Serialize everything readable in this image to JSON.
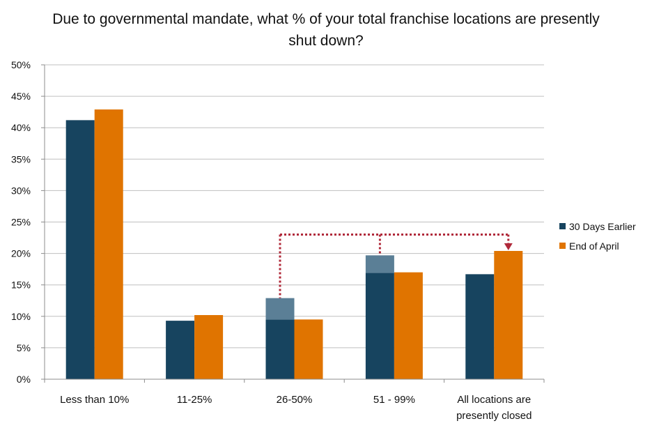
{
  "chart_data": {
    "type": "bar",
    "title": "Due to governmental mandate, what % of your total franchise locations are presently shut down?",
    "categories": [
      "Less than 10%",
      "11-25%",
      "26-50%",
      "51 - 99%",
      "All locations are presently closed"
    ],
    "series": [
      {
        "name": "30 Days Earlier",
        "values": [
          41.2,
          9.3,
          9.5,
          16.9,
          16.7
        ],
        "color": "#17445f"
      },
      {
        "name": "End of April",
        "values": [
          42.9,
          10.2,
          9.5,
          17.0,
          20.4
        ],
        "color": "#e07400"
      }
    ],
    "overlay": {
      "description_color": "#5b7f96",
      "segments": [
        {
          "category": "26-50%",
          "series": "30 Days Earlier",
          "from": 9.5,
          "to": 12.9
        },
        {
          "category": "51 - 99%",
          "series": "30 Days Earlier",
          "from": 16.9,
          "to": 19.7
        }
      ],
      "connector": {
        "color": "#b0293a",
        "style": "dotted",
        "level": 23,
        "to_category": "All locations are presently closed",
        "to_series": "End of April"
      }
    },
    "yticks": [
      "0%",
      "5%",
      "10%",
      "15%",
      "20%",
      "25%",
      "30%",
      "35%",
      "40%",
      "45%",
      "50%"
    ],
    "ylim": [
      0,
      50
    ],
    "grid": true,
    "legend_position": "right"
  }
}
